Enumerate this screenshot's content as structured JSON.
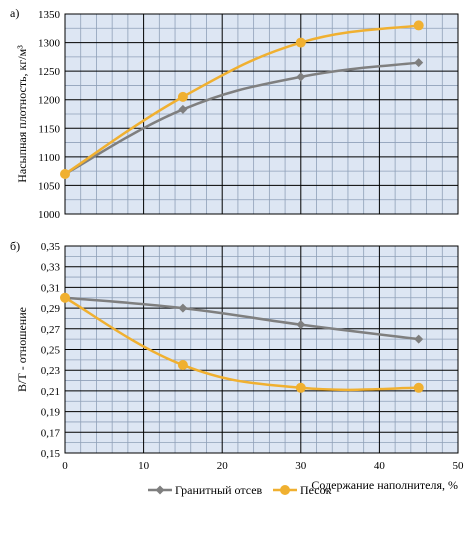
{
  "chart_data": [
    {
      "type": "line",
      "panel_label": "а)",
      "ylabel": "Насыпная плотность, кг/м³",
      "xlim": [
        0,
        50
      ],
      "ylim": [
        1000,
        1350
      ],
      "yticks": [
        1000,
        1050,
        1100,
        1150,
        1200,
        1250,
        1300,
        1350
      ],
      "ytick_labels": [
        "1000",
        "1050",
        "1100",
        "1150",
        "1200",
        "1250",
        "1300",
        "1350"
      ],
      "grid": true,
      "series": [
        {
          "name": "Гранитный отсев",
          "color": "#7f7f7f",
          "marker": "diamond",
          "x": [
            0,
            15,
            30,
            45
          ],
          "y": [
            1070,
            1183,
            1240,
            1265
          ]
        },
        {
          "name": "Песок",
          "color": "#f0b030",
          "marker": "circle",
          "x": [
            0,
            15,
            30,
            45
          ],
          "y": [
            1070,
            1205,
            1300,
            1330
          ]
        }
      ]
    },
    {
      "type": "line",
      "panel_label": "б)",
      "xlabel": "Содержание наполнителя, %",
      "ylabel": "В/Т - отношение",
      "xlim": [
        0,
        50
      ],
      "ylim": [
        0.15,
        0.35
      ],
      "xticks": [
        0,
        10,
        20,
        30,
        40,
        50
      ],
      "xtick_labels": [
        "0",
        "10",
        "20",
        "30",
        "40",
        "50"
      ],
      "yticks": [
        0.15,
        0.17,
        0.19,
        0.21,
        0.23,
        0.25,
        0.27,
        0.29,
        0.31,
        0.33,
        0.35
      ],
      "ytick_labels": [
        "0,15",
        "0,17",
        "0,19",
        "0,21",
        "0,23",
        "0,25",
        "0,27",
        "0,29",
        "0,31",
        "0,33",
        "0,35"
      ],
      "grid": true,
      "series": [
        {
          "name": "Гранитный отсев",
          "color": "#7f7f7f",
          "marker": "diamond",
          "x": [
            0,
            15,
            30,
            45
          ],
          "y": [
            0.3,
            0.29,
            0.274,
            0.26
          ]
        },
        {
          "name": "Песок",
          "color": "#f0b030",
          "marker": "circle",
          "x": [
            0,
            15,
            30,
            45
          ],
          "y": [
            0.3,
            0.235,
            0.213,
            0.213
          ]
        }
      ]
    }
  ],
  "legend": {
    "position": "bottom",
    "items": [
      {
        "label": "Гранитный отсев",
        "color": "#7f7f7f",
        "marker": "diamond"
      },
      {
        "label": "Песок",
        "color": "#f0b030",
        "marker": "circle"
      }
    ]
  },
  "colors": {
    "plot_background": "#dde6f3",
    "major_grid": "#000000",
    "minor_grid": "#8fa0b8"
  }
}
